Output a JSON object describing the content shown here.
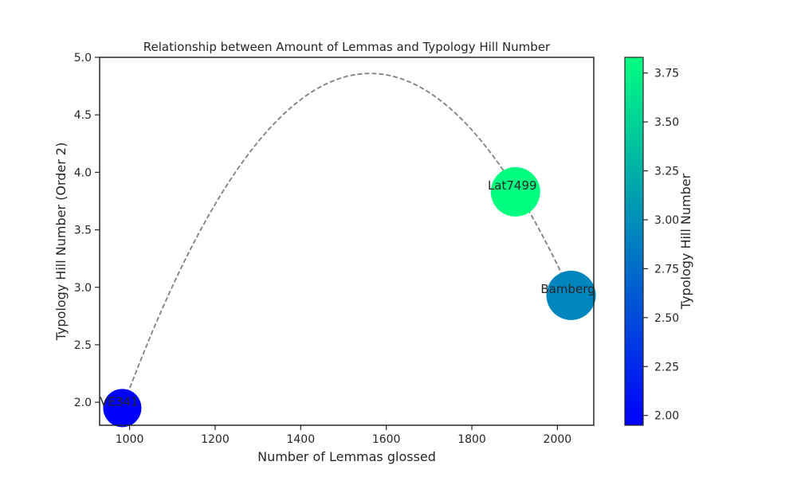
{
  "chart_data": {
    "type": "scatter",
    "title": "Relationship between Amount of Lemmas and Typology Hill Number",
    "xlabel": "Number of Lemmas glossed",
    "ylabel": "Typology Hill Number (Order 2)",
    "xlim": [
      930,
      2085
    ],
    "ylim": [
      1.8,
      5.0
    ],
    "xticks": [
      1000,
      1200,
      1400,
      1600,
      1800,
      2000
    ],
    "yticks": [
      2.0,
      2.5,
      3.0,
      3.5,
      4.0,
      4.5,
      5.0
    ],
    "xtick_labels": [
      "1000",
      "1200",
      "1400",
      "1600",
      "1800",
      "2000"
    ],
    "ytick_labels": [
      "2.0",
      "2.5",
      "3.0",
      "3.5",
      "4.0",
      "4.5",
      "5.0"
    ],
    "points": [
      {
        "label": "VE341",
        "x": 983,
        "y": 1.95,
        "color_value": 1.95
      },
      {
        "label": "Lat7499",
        "x": 1902,
        "y": 3.83,
        "color_value": 3.83
      },
      {
        "label": "Bamberg",
        "x": 2032,
        "y": 2.93,
        "color_value": 2.93
      }
    ],
    "fit_curve": {
      "style": "dashed",
      "color": "#808080",
      "x_range": [
        983,
        2032
      ],
      "vertex": [
        1562,
        4.86
      ]
    },
    "colorbar": {
      "label": "Typology Hill Number",
      "range": [
        1.95,
        3.83
      ],
      "ticks": [
        2.0,
        2.25,
        2.5,
        2.75,
        3.0,
        3.25,
        3.5,
        3.75
      ],
      "tick_labels": [
        "2.00",
        "2.25",
        "2.50",
        "2.75",
        "3.00",
        "3.25",
        "3.50",
        "3.75"
      ],
      "colormap": "winter",
      "color_low": "#0000ff",
      "color_high": "#00ff80"
    },
    "grid": false
  }
}
